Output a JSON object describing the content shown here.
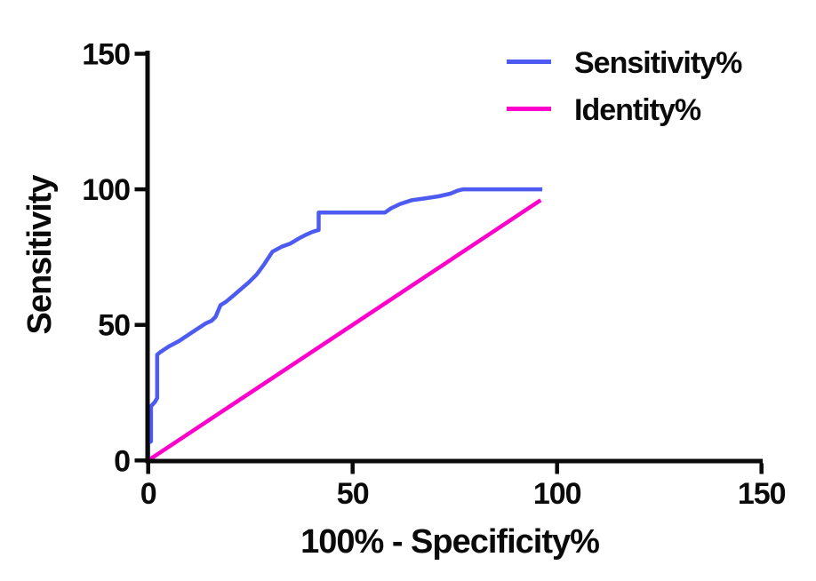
{
  "figure": {
    "background": "#ffffff"
  },
  "chart_data": {
    "type": "line",
    "title": "",
    "xlabel": "100% - Specificity%",
    "ylabel": "Sensitivity",
    "xlim": [
      0,
      150
    ],
    "ylim": [
      0,
      150
    ],
    "xticks": [
      0,
      50,
      100,
      150
    ],
    "yticks": [
      0,
      50,
      100,
      150
    ],
    "grid": false,
    "legend_position": "top-right",
    "axis_color": "#0a0a0a",
    "series": [
      {
        "id": "sensitivity",
        "name": "Sensitivity%",
        "color": "#4d5bf3",
        "points": [
          [
            0,
            0
          ],
          [
            0,
            6.5
          ],
          [
            0.7,
            7
          ],
          [
            0.7,
            20
          ],
          [
            1.6,
            21.5
          ],
          [
            2.2,
            23
          ],
          [
            2.2,
            39
          ],
          [
            3,
            40
          ],
          [
            5,
            42
          ],
          [
            7.5,
            44
          ],
          [
            10,
            46.5
          ],
          [
            12.5,
            49
          ],
          [
            14,
            50.5
          ],
          [
            15.5,
            51.5
          ],
          [
            16.5,
            53
          ],
          [
            17.7,
            57.3
          ],
          [
            19,
            58.5
          ],
          [
            21,
            61
          ],
          [
            24.6,
            65.7
          ],
          [
            26.5,
            68.5
          ],
          [
            28.3,
            72.2
          ],
          [
            30.4,
            77
          ],
          [
            32.6,
            78.8
          ],
          [
            34.8,
            80
          ],
          [
            37,
            82
          ],
          [
            38.8,
            83.4
          ],
          [
            40.2,
            84.3
          ],
          [
            41.7,
            85
          ],
          [
            41.7,
            91.4
          ],
          [
            57.9,
            91.4
          ],
          [
            59.4,
            93
          ],
          [
            61.6,
            94.6
          ],
          [
            64.5,
            96
          ],
          [
            67.4,
            96.6
          ],
          [
            71,
            97.4
          ],
          [
            73.9,
            98.4
          ],
          [
            75.7,
            99.5
          ],
          [
            77,
            100
          ],
          [
            96.4,
            100
          ]
        ]
      },
      {
        "id": "identity",
        "name": "Identity%",
        "color": "#ff00cc",
        "points": [
          [
            0,
            0
          ],
          [
            96,
            96
          ]
        ]
      }
    ]
  }
}
